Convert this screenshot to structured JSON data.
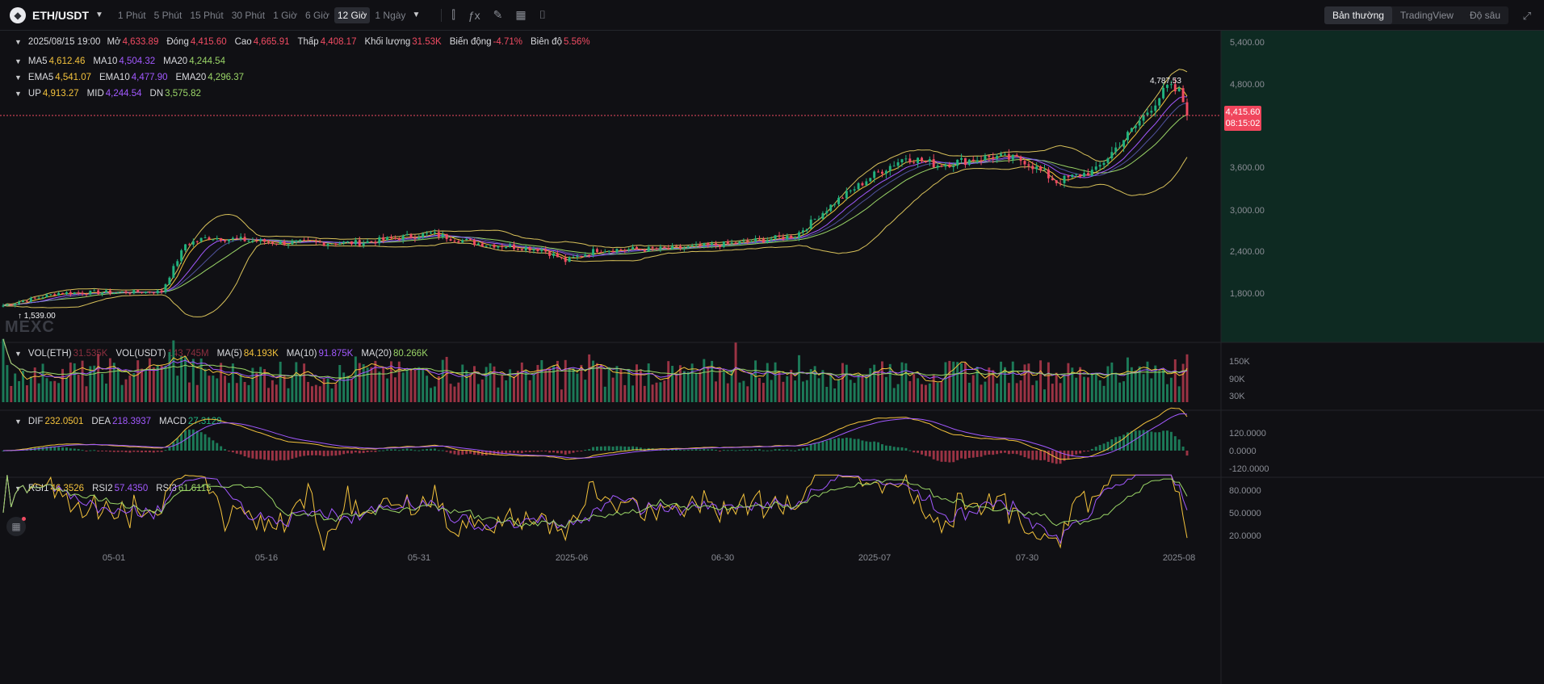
{
  "toolbar": {
    "pair": "ETH/USDT",
    "timeframes": [
      "1 Phút",
      "5 Phút",
      "15 Phút",
      "30 Phút",
      "1 Giờ",
      "6 Giờ",
      "12 Giờ",
      "1 Ngày"
    ],
    "active_timeframe": "12 Giờ",
    "views": [
      "Bản thường",
      "TradingView",
      "Độ sâu"
    ],
    "active_view": "Bản thường"
  },
  "ohlc": {
    "date": "2025/08/15 19:00",
    "open_label": "Mở",
    "open": "4,633.89",
    "close_label": "Đóng",
    "close": "4,415.60",
    "high_label": "Cao",
    "high": "4,665.91",
    "low_label": "Thấp",
    "low": "4,408.17",
    "volume_label": "Khối lượng",
    "volume": "31.53K",
    "change_label": "Biến động",
    "change": "-4.71%",
    "amplitude_label": "Biên độ",
    "amplitude": "5.56%"
  },
  "ma": {
    "ma5_label": "MA5",
    "ma5": "4,612.46",
    "ma10_label": "MA10",
    "ma10": "4,504.32",
    "ma20_label": "MA20",
    "ma20": "4,244.54"
  },
  "ema": {
    "ema5_label": "EMA5",
    "ema5": "4,541.07",
    "ema10_label": "EMA10",
    "ema10": "4,477.90",
    "ema20_label": "EMA20",
    "ema20": "4,296.37"
  },
  "boll": {
    "up_label": "UP",
    "up": "4,913.27",
    "mid_label": "MID",
    "mid": "4,244.54",
    "dn_label": "DN",
    "dn": "3,575.82"
  },
  "vol": {
    "eth_label": "VOL(ETH)",
    "eth": "31.535K",
    "usdt_label": "VOL(USDT)",
    "usdt": "143.745M",
    "ma5_label": "MA(5)",
    "ma5": "84.193K",
    "ma10_label": "MA(10)",
    "ma10": "91.875K",
    "ma20_label": "MA(20)",
    "ma20": "80.266K"
  },
  "macd": {
    "dif_label": "DIF",
    "dif": "232.0501",
    "dea_label": "DEA",
    "dea": "218.3937",
    "macd_label": "MACD",
    "macd": "27.3129"
  },
  "rsi": {
    "rsi1_label": "RSI1",
    "rsi1": "46.3526",
    "rsi2_label": "RSI2",
    "rsi2": "57.4350",
    "rsi3_label": "RSI3",
    "rsi3": "61.6115"
  },
  "last_price": {
    "price": "4,415.60",
    "countdown": "08:15:02"
  },
  "extremes": {
    "high": "4,787.53",
    "low": "1,539.00"
  },
  "watermark": "MEXC",
  "chart_data": {
    "type": "candlestick",
    "price_axis": [
      "5,400.00",
      "4,800.00",
      "3,600.00",
      "3,000.00",
      "2,400.00",
      "1,800.00"
    ],
    "volume_axis": [
      "150K",
      "90K",
      "30K"
    ],
    "macd_axis": [
      "120.0000",
      "0.0000",
      "-120.0000"
    ],
    "rsi_axis": [
      "80.0000",
      "50.0000",
      "20.0000"
    ],
    "date_axis": [
      "05-01",
      "05-16",
      "05-31",
      "2025-06",
      "06-30",
      "2025-07",
      "07-30",
      "2025-08"
    ],
    "anchors": [
      {
        "i": 0,
        "p": 1620
      },
      {
        "i": 14,
        "p": 1800
      },
      {
        "i": 40,
        "p": 1820
      },
      {
        "i": 46,
        "p": 2500
      },
      {
        "i": 52,
        "p": 2600
      },
      {
        "i": 70,
        "p": 2520
      },
      {
        "i": 90,
        "p": 2520
      },
      {
        "i": 108,
        "p": 2650
      },
      {
        "i": 120,
        "p": 2510
      },
      {
        "i": 136,
        "p": 2430
      },
      {
        "i": 142,
        "p": 2260
      },
      {
        "i": 150,
        "p": 2420
      },
      {
        "i": 168,
        "p": 2430
      },
      {
        "i": 186,
        "p": 2520
      },
      {
        "i": 200,
        "p": 2620
      },
      {
        "i": 210,
        "p": 3100
      },
      {
        "i": 220,
        "p": 3500
      },
      {
        "i": 228,
        "p": 3750
      },
      {
        "i": 236,
        "p": 3640
      },
      {
        "i": 250,
        "p": 3760
      },
      {
        "i": 258,
        "p": 3700
      },
      {
        "i": 266,
        "p": 3400
      },
      {
        "i": 276,
        "p": 3560
      },
      {
        "i": 286,
        "p": 4200
      },
      {
        "i": 294,
        "p": 4750
      },
      {
        "i": 297,
        "p": 4680
      },
      {
        "i": 299,
        "p": 4415
      }
    ]
  }
}
